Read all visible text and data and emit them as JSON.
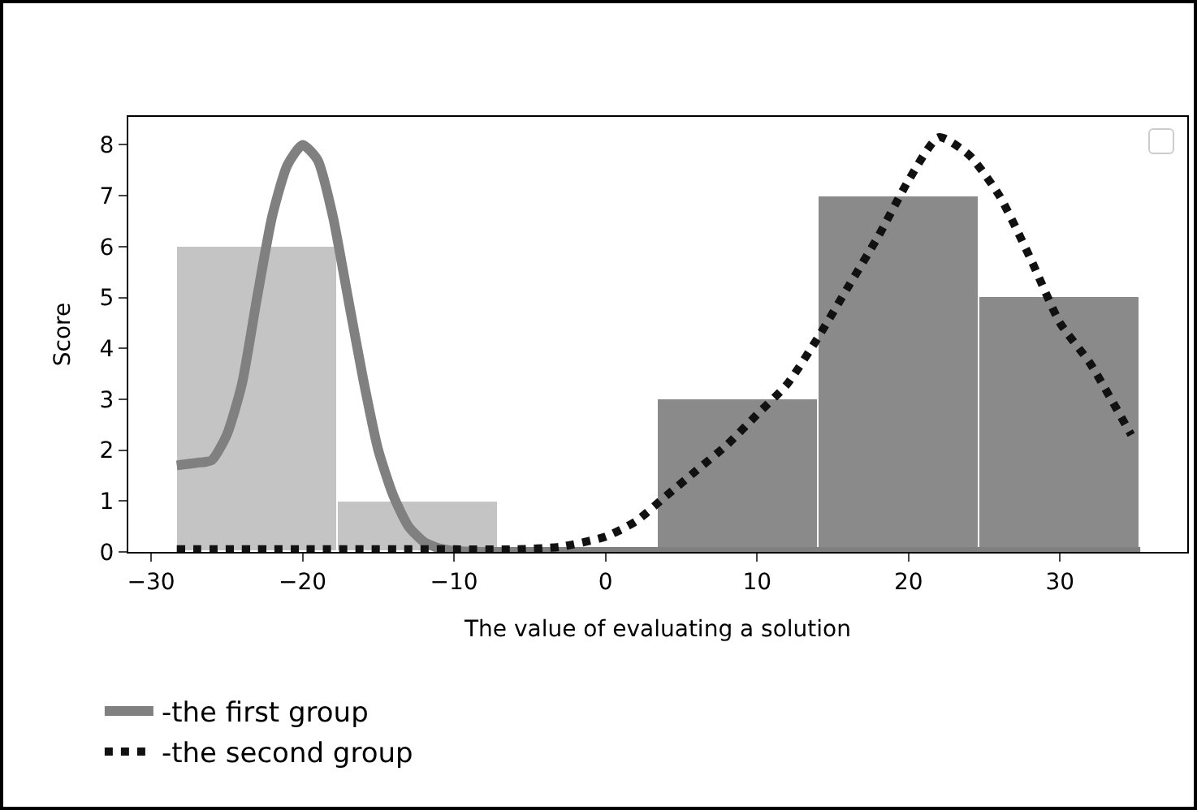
{
  "chart_data": {
    "type": "histogram",
    "xlabel": "The value of evaluating a solution",
    "ylabel": "Score",
    "bins": [
      -28.3,
      -17.7,
      -7.1,
      3.5,
      14.1,
      24.7,
      35.3
    ],
    "series": [
      {
        "color": "#c4c4c4",
        "values": [
          6,
          1,
          null,
          null,
          null,
          null
        ]
      },
      {
        "color": "#8a8a8a",
        "values": [
          null,
          null,
          null,
          3,
          7,
          5
        ]
      },
      {
        "type": "line",
        "name": "-the first group",
        "color": "#808080",
        "line_style": "solid",
        "x": [
          -28.3,
          -27,
          -26,
          -25,
          -24,
          -23,
          -22,
          -21,
          -20,
          -19,
          -18,
          -17,
          -16,
          -15,
          -14,
          -13,
          -12,
          -11,
          -10,
          -8,
          0,
          10,
          20,
          35.3
        ],
        "values": [
          1.7,
          1.75,
          1.8,
          2.3,
          3.3,
          5,
          6.6,
          7.6,
          8,
          7.7,
          6.6,
          5,
          3.4,
          2,
          1.1,
          0.5,
          0.2,
          0.07,
          0.02,
          0,
          0,
          0,
          0,
          0
        ]
      },
      {
        "type": "line",
        "name": "-the second group",
        "color": "#111111",
        "line_style": "dotted",
        "x": [
          -28.3,
          -20,
          -10,
          -6,
          -3,
          0,
          2,
          4,
          6,
          8,
          10,
          12,
          14,
          16,
          18,
          20,
          22,
          24,
          26,
          28,
          30,
          32,
          34.7
        ],
        "values": [
          0.05,
          0.05,
          0.05,
          0.05,
          0.1,
          0.3,
          0.6,
          1.1,
          1.6,
          2.1,
          2.7,
          3.3,
          4.2,
          5.2,
          6.2,
          7.3,
          8.15,
          7.8,
          7,
          5.8,
          4.5,
          3.7,
          2.3
        ]
      }
    ],
    "xlim": [
      -31.5,
      38.4
    ],
    "ylim": [
      0,
      8.55
    ],
    "xticks": [
      {
        "value": -30,
        "label": "−30"
      },
      {
        "value": -20,
        "label": "−20"
      },
      {
        "value": -10,
        "label": "−10"
      },
      0,
      10,
      20,
      30
    ],
    "yticks": [
      0,
      1,
      2,
      3,
      4,
      5,
      6,
      7,
      8
    ],
    "grid": false,
    "legend": "bottom left",
    "marker": "none"
  }
}
